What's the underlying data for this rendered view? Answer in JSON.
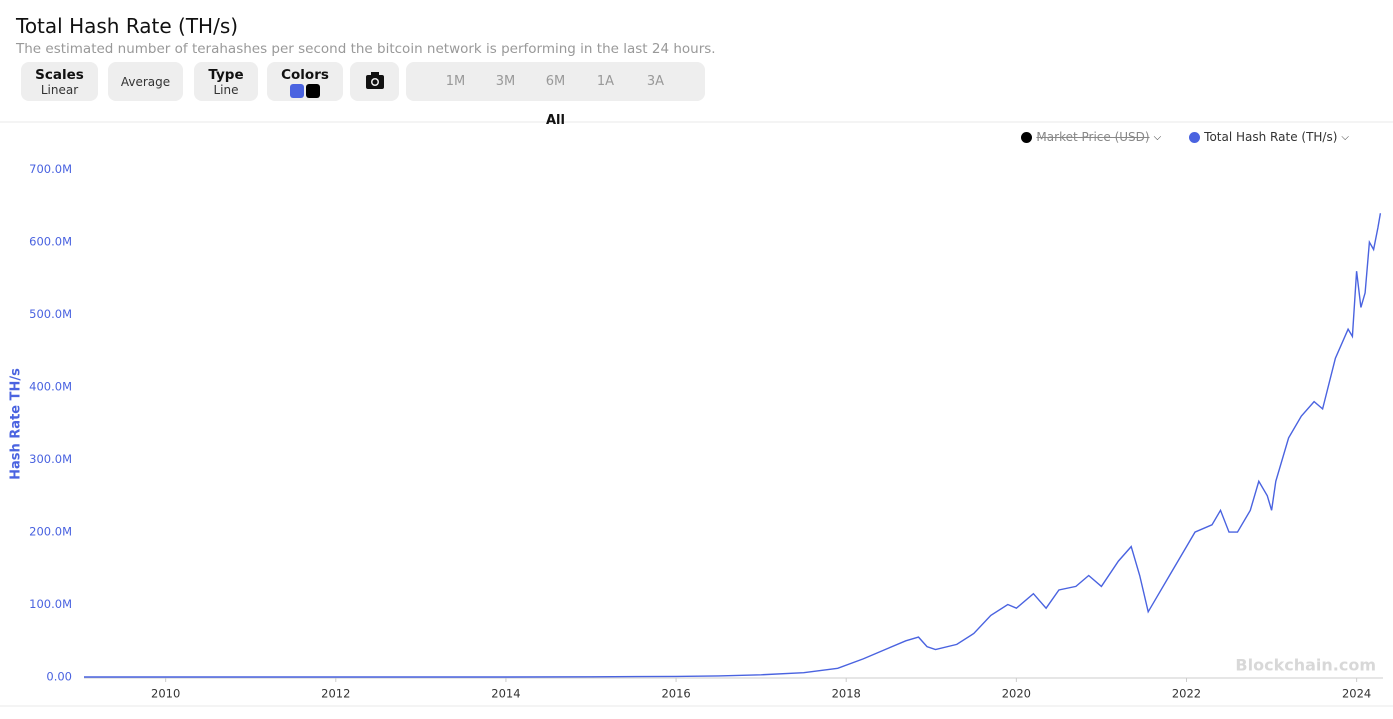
{
  "header": {
    "title": "Total Hash Rate (TH/s)",
    "subtitle": "The estimated number of terahashes per second the bitcoin network is performing in the last 24 hours."
  },
  "toolbar": {
    "scales_label": "Scales",
    "scales_value": "Linear",
    "average": "Average",
    "type_label": "Type",
    "type_value": "Line",
    "colors_label": "Colors",
    "ranges": [
      "1M",
      "3M",
      "6M",
      "1A",
      "3A",
      "All"
    ],
    "active_range": 5
  },
  "watermark": "Blockchain.com",
  "chart_data": {
    "type": "line",
    "y_label": "Hash Rate TH/s",
    "hidden_series": [
      {
        "name": "Market Price (USD)",
        "color": "#000000"
      }
    ],
    "x": [
      2009.04,
      2012,
      2014,
      2015,
      2016,
      2016.5,
      2017,
      2017.5,
      2017.9,
      2018.2,
      2018.5,
      2018.7,
      2018.85,
      2018.95,
      2019.05,
      2019.3,
      2019.5,
      2019.7,
      2019.9,
      2020.0,
      2020.2,
      2020.35,
      2020.5,
      2020.7,
      2020.85,
      2021.0,
      2021.2,
      2021.35,
      2021.45,
      2021.55,
      2021.65,
      2021.8,
      2022.0,
      2022.1,
      2022.3,
      2022.4,
      2022.5,
      2022.6,
      2022.75,
      2022.85,
      2022.95,
      2023.0,
      2023.05,
      2023.2,
      2023.35,
      2023.5,
      2023.6,
      2023.75,
      2023.9,
      2023.95,
      2024.0,
      2024.05,
      2024.1,
      2024.15,
      2024.2,
      2024.25,
      2024.28
    ],
    "series": [
      {
        "name": "Total Hash Rate (TH/s)",
        "color": "#4a63e0",
        "values": [
          0,
          0,
          50000,
          300000,
          800000,
          1500000,
          3000000,
          6000000,
          12000000,
          25000000,
          40000000,
          50000000,
          55000000,
          42000000,
          38000000,
          45000000,
          60000000,
          85000000,
          100000000,
          95000000,
          115000000,
          95000000,
          120000000,
          125000000,
          140000000,
          125000000,
          160000000,
          180000000,
          140000000,
          90000000,
          110000000,
          140000000,
          180000000,
          200000000,
          210000000,
          230000000,
          200000000,
          200000000,
          230000000,
          270000000,
          250000000,
          230000000,
          270000000,
          330000000,
          360000000,
          380000000,
          370000000,
          440000000,
          480000000,
          470000000,
          560000000,
          510000000,
          530000000,
          600000000,
          590000000,
          620000000,
          640000000
        ]
      }
    ],
    "xlim": [
      2009.04,
      2024.31
    ],
    "xticks": [
      2010,
      2012,
      2014,
      2016,
      2018,
      2020,
      2022,
      2024
    ],
    "ylim": [
      0,
      730000000
    ],
    "yticks": [
      {
        "value": 0,
        "label": "0.00"
      },
      {
        "value": 100000000,
        "label": "100.0M"
      },
      {
        "value": 200000000,
        "label": "200.0M"
      },
      {
        "value": 300000000,
        "label": "300.0M"
      },
      {
        "value": 400000000,
        "label": "400.0M"
      },
      {
        "value": 500000000,
        "label": "500.0M"
      },
      {
        "value": 600000000,
        "label": "600.0M"
      },
      {
        "value": 700000000,
        "label": "700.0M"
      }
    ],
    "grid": false,
    "legend": "top-right"
  }
}
